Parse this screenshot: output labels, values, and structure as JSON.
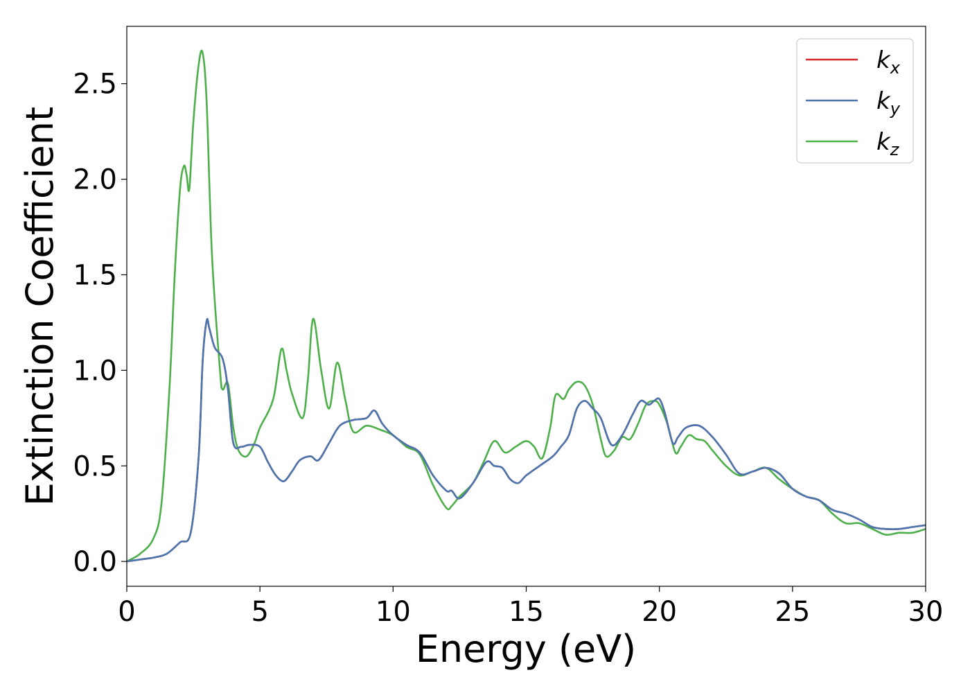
{
  "chart_data": {
    "type": "line",
    "title": "",
    "xlabel": "Energy (eV)",
    "ylabel": "Extinction Coefficient",
    "xlim": [
      0,
      30
    ],
    "ylim": [
      -0.13,
      2.8
    ],
    "xticks": [
      0,
      5,
      10,
      15,
      20,
      25,
      30
    ],
    "yticks": [
      0.0,
      0.5,
      1.0,
      1.5,
      2.0,
      2.5
    ],
    "xtick_labels": [
      "0",
      "5",
      "10",
      "15",
      "20",
      "25",
      "30"
    ],
    "ytick_labels": [
      "0.0",
      "0.5",
      "1.0",
      "1.5",
      "2.0",
      "2.5"
    ],
    "grid": false,
    "legend_position": "top-right",
    "series": [
      {
        "name": "k_x",
        "legend_base": "k",
        "legend_sub": "x",
        "color": "#d62728",
        "x": [
          0,
          0.5,
          1.0,
          1.5,
          2.0,
          2.4,
          2.7,
          2.85,
          3.0,
          3.1,
          3.3,
          3.6,
          3.8,
          4.0,
          4.3,
          4.6,
          5.0,
          5.3,
          5.6,
          5.9,
          6.2,
          6.5,
          6.9,
          7.2,
          7.6,
          8.0,
          8.5,
          9.0,
          9.3,
          9.6,
          10.0,
          10.5,
          11.0,
          11.5,
          12.0,
          12.2,
          12.5,
          13.0,
          13.5,
          13.8,
          14.1,
          14.4,
          14.7,
          15.0,
          15.5,
          16.0,
          16.3,
          16.6,
          16.9,
          17.2,
          17.5,
          17.8,
          18.2,
          18.6,
          19.0,
          19.3,
          19.6,
          19.8,
          20.0,
          20.2,
          20.5,
          20.7,
          21.0,
          21.5,
          22.0,
          22.5,
          23.0,
          23.5,
          24.0,
          24.5,
          25.0,
          25.5,
          26.0,
          26.5,
          27.0,
          27.5,
          28.0,
          28.5,
          29.0,
          29.5,
          30.0
        ],
        "y": [
          0.0,
          0.01,
          0.02,
          0.04,
          0.1,
          0.15,
          0.55,
          1.05,
          1.26,
          1.22,
          1.12,
          1.06,
          0.9,
          0.62,
          0.6,
          0.61,
          0.6,
          0.52,
          0.45,
          0.42,
          0.47,
          0.53,
          0.55,
          0.53,
          0.62,
          0.71,
          0.74,
          0.75,
          0.79,
          0.72,
          0.66,
          0.61,
          0.57,
          0.45,
          0.37,
          0.37,
          0.33,
          0.41,
          0.52,
          0.5,
          0.49,
          0.43,
          0.41,
          0.45,
          0.5,
          0.55,
          0.6,
          0.66,
          0.8,
          0.84,
          0.8,
          0.75,
          0.61,
          0.66,
          0.77,
          0.84,
          0.82,
          0.84,
          0.85,
          0.78,
          0.62,
          0.65,
          0.7,
          0.71,
          0.65,
          0.56,
          0.46,
          0.47,
          0.49,
          0.46,
          0.38,
          0.34,
          0.32,
          0.27,
          0.25,
          0.22,
          0.18,
          0.17,
          0.17,
          0.18,
          0.19
        ]
      },
      {
        "name": "k_y",
        "legend_base": "k",
        "legend_sub": "y",
        "color": "#4a76b0",
        "x": [
          0,
          0.5,
          1.0,
          1.5,
          2.0,
          2.4,
          2.7,
          2.85,
          3.0,
          3.1,
          3.3,
          3.6,
          3.8,
          4.0,
          4.3,
          4.6,
          5.0,
          5.3,
          5.6,
          5.9,
          6.2,
          6.5,
          6.9,
          7.2,
          7.6,
          8.0,
          8.5,
          9.0,
          9.3,
          9.6,
          10.0,
          10.5,
          11.0,
          11.5,
          12.0,
          12.2,
          12.5,
          13.0,
          13.5,
          13.8,
          14.1,
          14.4,
          14.7,
          15.0,
          15.5,
          16.0,
          16.3,
          16.6,
          16.9,
          17.2,
          17.5,
          17.8,
          18.2,
          18.6,
          19.0,
          19.3,
          19.6,
          19.8,
          20.0,
          20.2,
          20.5,
          20.7,
          21.0,
          21.5,
          22.0,
          22.5,
          23.0,
          23.5,
          24.0,
          24.5,
          25.0,
          25.5,
          26.0,
          26.5,
          27.0,
          27.5,
          28.0,
          28.5,
          29.0,
          29.5,
          30.0
        ],
        "y": [
          0.0,
          0.01,
          0.02,
          0.04,
          0.1,
          0.15,
          0.55,
          1.05,
          1.26,
          1.22,
          1.12,
          1.06,
          0.9,
          0.62,
          0.6,
          0.61,
          0.6,
          0.52,
          0.45,
          0.42,
          0.47,
          0.53,
          0.55,
          0.53,
          0.62,
          0.71,
          0.74,
          0.75,
          0.79,
          0.72,
          0.66,
          0.61,
          0.57,
          0.45,
          0.37,
          0.37,
          0.33,
          0.41,
          0.52,
          0.5,
          0.49,
          0.43,
          0.41,
          0.45,
          0.5,
          0.55,
          0.6,
          0.66,
          0.8,
          0.84,
          0.8,
          0.75,
          0.61,
          0.66,
          0.77,
          0.84,
          0.82,
          0.84,
          0.85,
          0.78,
          0.62,
          0.65,
          0.7,
          0.71,
          0.65,
          0.56,
          0.46,
          0.47,
          0.49,
          0.46,
          0.38,
          0.34,
          0.32,
          0.27,
          0.25,
          0.22,
          0.18,
          0.17,
          0.17,
          0.18,
          0.19
        ]
      },
      {
        "name": "k_z",
        "legend_base": "k",
        "legend_sub": "z",
        "color": "#4daf4a",
        "x": [
          0,
          0.5,
          1.0,
          1.3,
          1.6,
          1.8,
          2.0,
          2.15,
          2.25,
          2.35,
          2.5,
          2.7,
          2.85,
          3.0,
          3.2,
          3.5,
          3.6,
          3.8,
          4.0,
          4.2,
          4.5,
          4.8,
          5.0,
          5.5,
          5.8,
          6.0,
          6.2,
          6.6,
          6.8,
          7.0,
          7.3,
          7.6,
          7.9,
          8.2,
          8.5,
          9.0,
          9.5,
          10.0,
          10.5,
          11.0,
          11.5,
          12.0,
          12.2,
          12.5,
          13.0,
          13.4,
          13.8,
          14.2,
          14.6,
          15.0,
          15.3,
          15.6,
          15.9,
          16.1,
          16.4,
          16.6,
          16.9,
          17.2,
          17.5,
          17.8,
          18.0,
          18.3,
          18.6,
          18.9,
          19.2,
          19.5,
          19.8,
          20.0,
          20.3,
          20.6,
          20.8,
          21.1,
          21.4,
          21.7,
          22.0,
          22.5,
          23.0,
          23.5,
          24.0,
          24.5,
          25.0,
          25.5,
          26.0,
          26.5,
          27.0,
          27.5,
          28.0,
          28.5,
          29.0,
          29.5,
          30.0
        ],
        "y": [
          0.0,
          0.04,
          0.12,
          0.3,
          0.9,
          1.5,
          1.95,
          2.07,
          2.02,
          1.95,
          2.3,
          2.6,
          2.66,
          2.4,
          1.6,
          1.0,
          0.9,
          0.93,
          0.7,
          0.58,
          0.55,
          0.62,
          0.7,
          0.85,
          1.11,
          1.0,
          0.88,
          0.75,
          0.95,
          1.27,
          1.0,
          0.8,
          1.04,
          0.85,
          0.68,
          0.71,
          0.69,
          0.66,
          0.6,
          0.56,
          0.4,
          0.28,
          0.29,
          0.34,
          0.41,
          0.52,
          0.63,
          0.57,
          0.6,
          0.63,
          0.6,
          0.54,
          0.7,
          0.87,
          0.85,
          0.9,
          0.94,
          0.92,
          0.82,
          0.64,
          0.55,
          0.58,
          0.65,
          0.64,
          0.72,
          0.82,
          0.84,
          0.82,
          0.72,
          0.57,
          0.6,
          0.66,
          0.64,
          0.63,
          0.58,
          0.5,
          0.45,
          0.47,
          0.49,
          0.43,
          0.38,
          0.34,
          0.32,
          0.25,
          0.2,
          0.2,
          0.17,
          0.14,
          0.15,
          0.15,
          0.17
        ]
      }
    ]
  }
}
